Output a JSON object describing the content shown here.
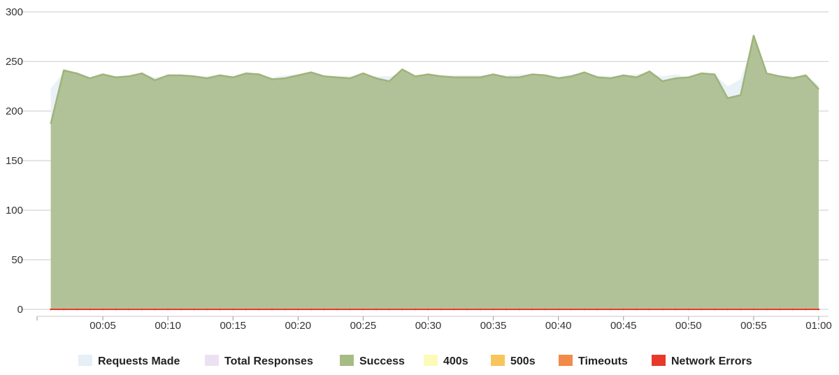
{
  "chart_data": {
    "type": "area",
    "xlabel": "",
    "ylabel": "",
    "ylim": [
      0,
      300
    ],
    "xlim": [
      0,
      60
    ],
    "y_ticks": [
      0,
      50,
      100,
      150,
      200,
      250,
      300
    ],
    "x_ticks": [
      5,
      10,
      15,
      20,
      25,
      30,
      35,
      40,
      45,
      50,
      55,
      60
    ],
    "x_tick_labels": [
      "00:05",
      "00:10",
      "00:15",
      "00:20",
      "00:25",
      "00:30",
      "00:35",
      "00:40",
      "00:45",
      "00:50",
      "00:55",
      "01:00"
    ],
    "grid": "horizontal",
    "legend_position": "bottom",
    "x": [
      1,
      2,
      3,
      4,
      5,
      6,
      7,
      8,
      9,
      10,
      11,
      12,
      13,
      14,
      15,
      16,
      17,
      18,
      19,
      20,
      21,
      22,
      23,
      24,
      25,
      26,
      27,
      28,
      29,
      30,
      31,
      32,
      33,
      34,
      35,
      36,
      37,
      38,
      39,
      40,
      41,
      42,
      43,
      44,
      45,
      46,
      47,
      48,
      49,
      50,
      51,
      52,
      53,
      54,
      55,
      56,
      57,
      58,
      59,
      60
    ],
    "series": [
      {
        "name": "Requests Made",
        "color": "#e6eef6",
        "values": [
          223,
          239,
          239,
          234,
          236,
          235,
          236,
          238,
          234,
          236,
          236,
          236,
          235,
          237,
          235,
          237,
          237,
          234,
          236,
          237,
          238,
          235,
          235,
          235,
          236,
          235,
          235,
          238,
          236,
          237,
          236,
          236,
          236,
          236,
          237,
          236,
          237,
          237,
          236,
          235,
          237,
          238,
          236,
          235,
          236,
          237,
          238,
          235,
          237,
          234,
          236,
          237,
          225,
          232,
          272,
          238,
          236,
          235,
          236,
          226
        ]
      },
      {
        "name": "Total Responses",
        "color": "#ece1f2",
        "values": [
          187,
          241,
          238,
          233,
          237,
          234,
          235,
          238,
          231,
          236,
          236,
          235,
          233,
          236,
          234,
          238,
          237,
          232,
          233,
          236,
          239,
          235,
          234,
          233,
          238,
          233,
          230,
          242,
          235,
          237,
          235,
          234,
          234,
          234,
          237,
          234,
          234,
          237,
          236,
          233,
          235,
          239,
          234,
          233,
          236,
          234,
          240,
          230,
          233,
          234,
          238,
          237,
          213,
          216,
          276,
          238,
          235,
          233,
          236,
          222
        ]
      },
      {
        "name": "Success",
        "color": "#9db47a",
        "values": [
          187,
          241,
          238,
          233,
          237,
          234,
          235,
          238,
          231,
          236,
          236,
          235,
          233,
          236,
          234,
          238,
          237,
          232,
          233,
          236,
          239,
          235,
          234,
          233,
          238,
          233,
          230,
          242,
          235,
          237,
          235,
          234,
          234,
          234,
          237,
          234,
          234,
          237,
          236,
          233,
          235,
          239,
          234,
          233,
          236,
          234,
          240,
          230,
          233,
          234,
          238,
          237,
          213,
          216,
          276,
          238,
          235,
          233,
          236,
          222
        ]
      },
      {
        "name": "400s",
        "color": "#fbfbb9",
        "values": [
          0,
          0,
          0,
          0,
          0,
          0,
          0,
          0,
          0,
          0,
          0,
          0,
          0,
          0,
          0,
          0,
          0,
          0,
          0,
          0,
          0,
          0,
          0,
          0,
          0,
          0,
          0,
          0,
          0,
          0,
          0,
          0,
          0,
          0,
          0,
          0,
          0,
          0,
          0,
          0,
          0,
          0,
          0,
          0,
          0,
          0,
          0,
          0,
          0,
          0,
          0,
          0,
          0,
          0,
          0,
          0,
          0,
          0,
          0,
          0
        ]
      },
      {
        "name": "500s",
        "color": "#f8c55b",
        "values": [
          0,
          0,
          0,
          0,
          0,
          0,
          0,
          0,
          0,
          0,
          0,
          0,
          0,
          0,
          0,
          0,
          0,
          0,
          0,
          0,
          0,
          0,
          0,
          0,
          0,
          0,
          0,
          0,
          0,
          0,
          0,
          0,
          0,
          0,
          0,
          0,
          0,
          0,
          0,
          0,
          0,
          0,
          0,
          0,
          0,
          0,
          0,
          0,
          0,
          0,
          0,
          0,
          0,
          0,
          0,
          0,
          0,
          0,
          0,
          0
        ]
      },
      {
        "name": "Timeouts",
        "color": "#f28a4a",
        "values": [
          0,
          0,
          0,
          0,
          0,
          0,
          0,
          0,
          0,
          0,
          0,
          0,
          0,
          0,
          0,
          0,
          0,
          0,
          0,
          0,
          0,
          0,
          0,
          0,
          0,
          0,
          0,
          0,
          0,
          0,
          0,
          0,
          0,
          0,
          0,
          0,
          0,
          0,
          0,
          0,
          0,
          0,
          0,
          0,
          0,
          0,
          0,
          0,
          0,
          0,
          0,
          0,
          0,
          0,
          0,
          0,
          0,
          0,
          0,
          0
        ]
      },
      {
        "name": "Network Errors",
        "color": "#e8392b",
        "values": [
          0,
          0,
          0,
          0,
          0,
          0,
          0,
          0,
          0,
          0,
          0,
          0,
          0,
          0,
          0,
          0,
          0,
          0,
          0,
          0,
          0,
          0,
          0,
          0,
          0,
          0,
          0,
          0,
          0,
          0,
          0,
          0,
          0,
          0,
          0,
          0,
          0,
          0,
          0,
          0,
          0,
          0,
          0,
          0,
          0,
          0,
          0,
          0,
          0,
          0,
          0,
          0,
          0,
          0,
          0,
          0,
          0,
          0,
          0,
          0
        ]
      }
    ]
  }
}
